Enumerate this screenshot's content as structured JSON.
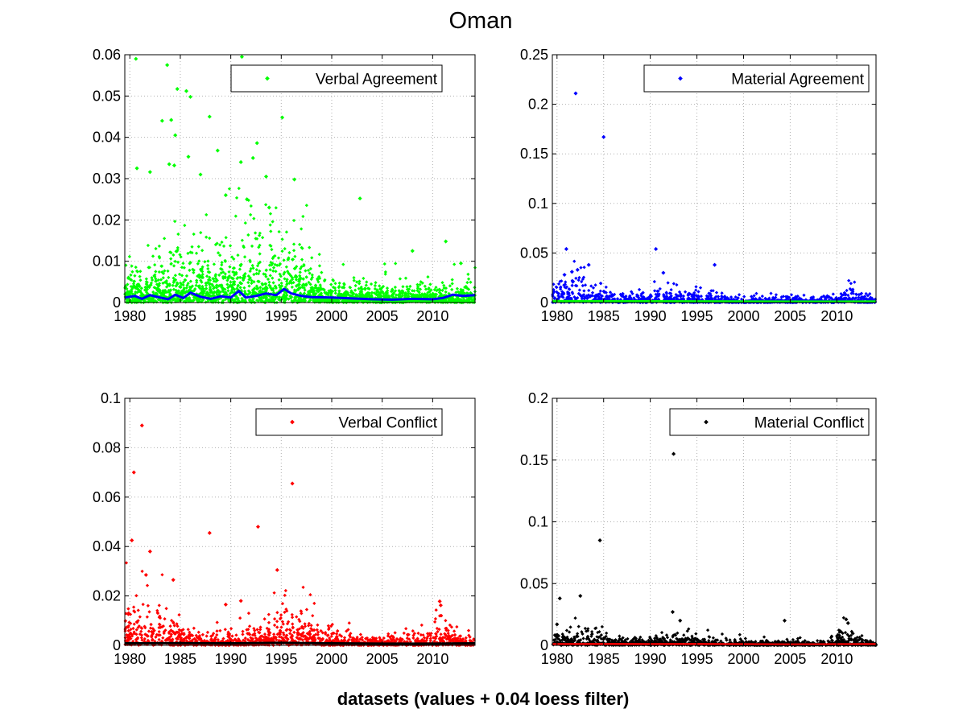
{
  "figure": {
    "title": "Oman",
    "xlabel": "datasets (values + 0.04 loess filter)"
  },
  "chart_data": [
    {
      "type": "scatter",
      "legend": "Verbal Agreement",
      "legend_placement": "top-right",
      "grid": true,
      "color": "#00ff00",
      "smooth_color": "#0000ff",
      "xlim": [
        1979.5,
        2014.2
      ],
      "ylim": [
        0,
        0.06
      ],
      "xticks": [
        1980,
        1985,
        1990,
        1995,
        2000,
        2005,
        2010
      ],
      "yticks": [
        0,
        0.01,
        0.02,
        0.03,
        0.04,
        0.05,
        0.06
      ],
      "yticklabels": [
        "0",
        "0.01",
        "0.02",
        "0.03",
        "0.04",
        "0.05",
        "0.06"
      ],
      "outliers": [
        [
          1980.6,
          0.059
        ],
        [
          1983.7,
          0.0575
        ],
        [
          1984.7,
          0.0517
        ],
        [
          1985.6,
          0.0512
        ],
        [
          1986.0,
          0.0498
        ],
        [
          1987.9,
          0.045
        ],
        [
          1984.1,
          0.0442
        ],
        [
          1983.2,
          0.044
        ],
        [
          1984.5,
          0.0405
        ],
        [
          1992.6,
          0.0386
        ],
        [
          1988.7,
          0.0368
        ],
        [
          1995.1,
          0.0448
        ],
        [
          1991.1,
          0.0595
        ],
        [
          1992.2,
          0.035
        ],
        [
          1985.8,
          0.0353
        ],
        [
          1991.0,
          0.034
        ],
        [
          1983.9,
          0.0335
        ],
        [
          1984.4,
          0.0332
        ],
        [
          1980.7,
          0.0325
        ],
        [
          1982.0,
          0.0316
        ],
        [
          1987.0,
          0.031
        ],
        [
          1993.5,
          0.0305
        ],
        [
          1996.3,
          0.0298
        ],
        [
          2002.8,
          0.0252
        ],
        [
          1989.5,
          0.026
        ],
        [
          1991.6,
          0.025
        ],
        [
          1993.8,
          0.023
        ],
        [
          2011.3,
          0.0148
        ],
        [
          2008.0,
          0.0125
        ],
        [
          2012.8,
          0.0095
        ]
      ],
      "bulk": {
        "base": 0.004,
        "bursts": [
          {
            "center": 1985,
            "width": 4,
            "amp": 0.006
          },
          {
            "center": 1991.5,
            "width": 2.5,
            "amp": 0.007
          },
          {
            "center": 1995.5,
            "width": 2.5,
            "amp": 0.008
          }
        ],
        "decay_end": 0.003,
        "count": 2200
      },
      "smooth": [
        [
          1979.5,
          0.0012
        ],
        [
          1980.5,
          0.0016
        ],
        [
          1981.2,
          0.0009
        ],
        [
          1982.0,
          0.0018
        ],
        [
          1983.0,
          0.0012
        ],
        [
          1983.8,
          0.0008
        ],
        [
          1984.5,
          0.0019
        ],
        [
          1985.3,
          0.0011
        ],
        [
          1986.0,
          0.0024
        ],
        [
          1987.0,
          0.0014
        ],
        [
          1988.0,
          0.0009
        ],
        [
          1989.0,
          0.0015
        ],
        [
          1990.0,
          0.0012
        ],
        [
          1990.8,
          0.0028
        ],
        [
          1991.5,
          0.0012
        ],
        [
          1992.5,
          0.0016
        ],
        [
          1993.5,
          0.0022
        ],
        [
          1994.5,
          0.0018
        ],
        [
          1995.3,
          0.0033
        ],
        [
          1996.0,
          0.0022
        ],
        [
          1997.0,
          0.0016
        ],
        [
          1998.0,
          0.0013
        ],
        [
          2000.0,
          0.0012
        ],
        [
          2002.0,
          0.001
        ],
        [
          2004.0,
          0.0008
        ],
        [
          2006.0,
          0.0007
        ],
        [
          2008.0,
          0.0009
        ],
        [
          2010.0,
          0.0008
        ],
        [
          2011.0,
          0.0011
        ],
        [
          2012.0,
          0.0019
        ],
        [
          2013.0,
          0.0016
        ],
        [
          2014.2,
          0.0018
        ]
      ]
    },
    {
      "type": "scatter",
      "legend": "Material Agreement",
      "legend_placement": "top-right",
      "grid": true,
      "color": "#0000ff",
      "smooth_color": "#00ff00",
      "xlim": [
        1979.5,
        2014.2
      ],
      "ylim": [
        0,
        0.25
      ],
      "xticks": [
        1980,
        1985,
        1990,
        1995,
        2000,
        2005,
        2010
      ],
      "yticks": [
        0,
        0.05,
        0.1,
        0.15,
        0.2,
        0.25
      ],
      "yticklabels": [
        "0",
        "0.05",
        "0.1",
        "0.15",
        "0.2",
        "0.25"
      ],
      "outliers": [
        [
          1982.0,
          0.211
        ],
        [
          1985.0,
          0.167
        ],
        [
          1981.0,
          0.054
        ],
        [
          1990.6,
          0.054
        ],
        [
          1996.9,
          0.038
        ],
        [
          1983.4,
          0.038
        ],
        [
          1982.2,
          0.033
        ],
        [
          1991.4,
          0.03
        ],
        [
          1980.8,
          0.028
        ],
        [
          1981.6,
          0.031
        ]
      ],
      "bulk": {
        "base": 0.006,
        "bursts": [
          {
            "center": 1981,
            "width": 3,
            "amp": 0.018
          },
          {
            "center": 1992,
            "width": 4,
            "amp": 0.005
          },
          {
            "center": 2011.5,
            "width": 1.5,
            "amp": 0.01
          }
        ],
        "decay_end": 0.003,
        "count": 1200
      },
      "smooth": [
        [
          1979.5,
          0.0015
        ],
        [
          1985.0,
          0.0013
        ],
        [
          1990.0,
          0.0012
        ],
        [
          1995.0,
          0.0011
        ],
        [
          2000.0,
          0.001
        ],
        [
          2005.0,
          0.0009
        ],
        [
          2010.0,
          0.0009
        ],
        [
          2014.2,
          0.001
        ]
      ]
    },
    {
      "type": "scatter",
      "legend": "Verbal Conflict",
      "legend_placement": "top-right",
      "grid": true,
      "color": "#ff0000",
      "smooth_color": "#000000",
      "xlim": [
        1979.5,
        2014.2
      ],
      "ylim": [
        0,
        0.1
      ],
      "xticks": [
        1980,
        1985,
        1990,
        1995,
        2000,
        2005,
        2010
      ],
      "yticks": [
        0,
        0.02,
        0.04,
        0.06,
        0.08,
        0.1
      ],
      "yticklabels": [
        "0",
        "0.02",
        "0.04",
        "0.06",
        "0.08",
        "0.1"
      ],
      "outliers": [
        [
          1981.2,
          0.089
        ],
        [
          1980.4,
          0.07
        ],
        [
          1996.1,
          0.0655
        ],
        [
          1992.7,
          0.048
        ],
        [
          1987.9,
          0.0455
        ],
        [
          1980.2,
          0.0425
        ],
        [
          1982.0,
          0.038
        ],
        [
          1994.6,
          0.0305
        ],
        [
          1981.6,
          0.0285
        ],
        [
          1984.3,
          0.0265
        ],
        [
          2010.7,
          0.0178
        ],
        [
          2010.8,
          0.0162
        ],
        [
          1991.0,
          0.018
        ],
        [
          1989.5,
          0.0165
        ]
      ],
      "bulk": {
        "base": 0.004,
        "bursts": [
          {
            "center": 1981,
            "width": 3,
            "amp": 0.012
          },
          {
            "center": 1996,
            "width": 3,
            "amp": 0.008
          },
          {
            "center": 2011,
            "width": 1.5,
            "amp": 0.006
          }
        ],
        "decay_end": 0.002,
        "count": 1500
      },
      "smooth": [
        [
          1979.5,
          0.0008
        ],
        [
          1985.0,
          0.0009
        ],
        [
          1990.0,
          0.0008
        ],
        [
          1995.0,
          0.001
        ],
        [
          2000.0,
          0.0008
        ],
        [
          2005.0,
          0.0007
        ],
        [
          2010.0,
          0.0007
        ],
        [
          2014.2,
          0.0008
        ]
      ]
    },
    {
      "type": "scatter",
      "legend": "Material Conflict",
      "legend_placement": "top-right",
      "grid": true,
      "color": "#000000",
      "smooth_color": "#ff0000",
      "xlim": [
        1979.5,
        2014.2
      ],
      "ylim": [
        0,
        0.2
      ],
      "xticks": [
        1980,
        1985,
        1990,
        1995,
        2000,
        2005,
        2010
      ],
      "yticks": [
        0,
        0.05,
        0.1,
        0.15,
        0.2
      ],
      "yticklabels": [
        "0",
        "0.05",
        "0.1",
        "0.15",
        "0.2"
      ],
      "outliers": [
        [
          1992.5,
          0.155
        ],
        [
          1984.6,
          0.085
        ],
        [
          1982.5,
          0.04
        ],
        [
          1980.3,
          0.038
        ],
        [
          1992.4,
          0.027
        ],
        [
          2004.4,
          0.02
        ],
        [
          2011.0,
          0.021
        ],
        [
          1993.2,
          0.02
        ],
        [
          2011.2,
          0.018
        ],
        [
          1980.0,
          0.017
        ]
      ],
      "bulk": {
        "base": 0.004,
        "bursts": [
          {
            "center": 1982,
            "width": 3.5,
            "amp": 0.006
          },
          {
            "center": 1993.5,
            "width": 3,
            "amp": 0.004
          },
          {
            "center": 2011,
            "width": 1.5,
            "amp": 0.006
          }
        ],
        "decay_end": 0.002,
        "count": 1300
      },
      "smooth": [
        [
          1979.5,
          0.0008
        ],
        [
          1985.0,
          0.0009
        ],
        [
          1990.0,
          0.0008
        ],
        [
          1995.0,
          0.0009
        ],
        [
          2000.0,
          0.0007
        ],
        [
          2005.0,
          0.0006
        ],
        [
          2010.0,
          0.0007
        ],
        [
          2014.2,
          0.0008
        ]
      ]
    }
  ]
}
